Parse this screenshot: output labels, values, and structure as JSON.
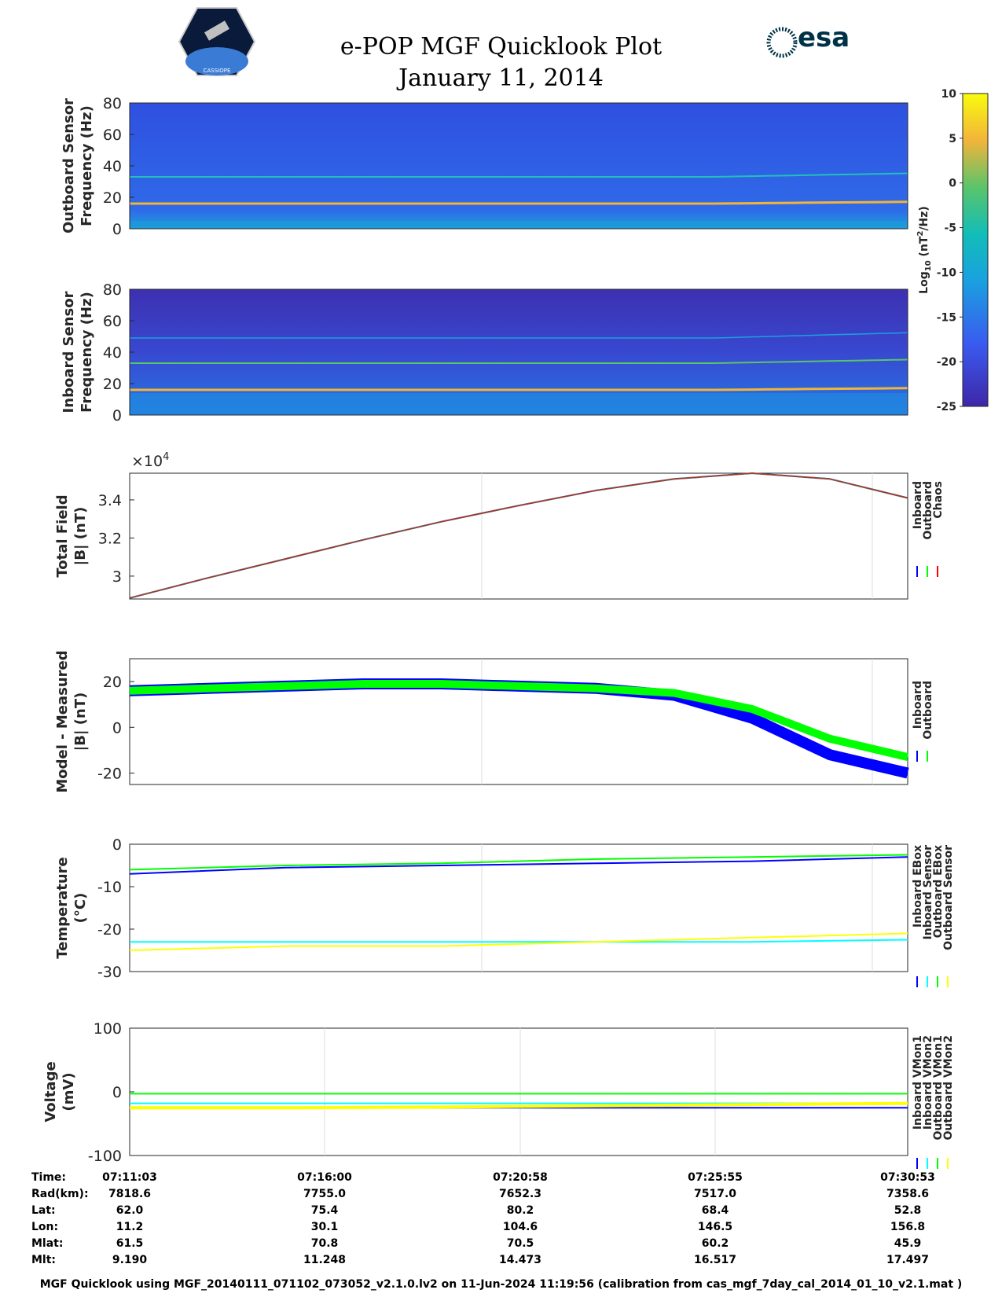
{
  "header": {
    "title": "e-POP MGF Quicklook Plot",
    "date": "January 11, 2014",
    "logo_left": "CASSIOPE",
    "logo_right": "esa"
  },
  "colors": {
    "inboard": "#0000ff",
    "outboard": "#00ff00",
    "chaos": "#ff0000",
    "cyan": "#00ffff",
    "yellow": "#ffff00",
    "spectro_bg": "#3048d8"
  },
  "colorbar": {
    "label": "Log10 (nT2/Hz)",
    "ticks": [
      "10",
      "5",
      "0",
      "-5",
      "-10",
      "-15",
      "-20",
      "-25"
    ],
    "range": [
      -25,
      10
    ]
  },
  "panels": {
    "outboard_spec": {
      "ylabel1": "Outboard Sensor",
      "ylabel2": "Frequency (Hz)",
      "yticks": [
        "80",
        "60",
        "40",
        "20",
        "0"
      ]
    },
    "inboard_spec": {
      "ylabel1": "Inboard Sensor",
      "ylabel2": "Frequency (Hz)",
      "yticks": [
        "80",
        "60",
        "40",
        "20",
        "0"
      ]
    },
    "total_field": {
      "ylabel1": "Total Field",
      "ylabel2": "|B| (nT)",
      "exponent": "×10",
      "exponent_power": "4",
      "yticks": [
        "3.4",
        "3.2",
        "3"
      ],
      "legend": [
        "Inboard",
        "Outboard",
        "Chaos"
      ]
    },
    "model_measured": {
      "ylabel1": "Model - Measured",
      "ylabel2": "|B| (nT)",
      "yticks": [
        "20",
        "0",
        "-20"
      ],
      "legend": [
        "Inboard",
        "Outboard"
      ]
    },
    "temperature": {
      "ylabel1": "Temperature",
      "ylabel2": "(°C)",
      "yticks": [
        "0",
        "-10",
        "-20",
        "-30"
      ],
      "legend": [
        "Inboard EBox",
        "Inboard Sensor",
        "Outboard EBox",
        "Outboard Sensor"
      ]
    },
    "voltage": {
      "ylabel1": "Voltage",
      "ylabel2": "(mV)",
      "yticks": [
        "100",
        "0",
        "-100"
      ],
      "legend": [
        "Inboard VMon1",
        "Inboard VMon2",
        "Outboard VMon1",
        "Outboard VMon2"
      ]
    }
  },
  "chart_data": [
    {
      "type": "heatmap",
      "title": "Outboard Sensor",
      "ylabel": "Frequency (Hz)",
      "ylim": [
        0,
        80
      ],
      "lines_hz": [
        16,
        33
      ],
      "zlabel": "Log10 (nT2/Hz)",
      "zlim": [
        -25,
        10
      ]
    },
    {
      "type": "heatmap",
      "title": "Inboard Sensor",
      "ylabel": "Frequency (Hz)",
      "ylim": [
        0,
        80
      ],
      "lines_hz": [
        16,
        33,
        49
      ],
      "zlabel": "Log10 (nT2/Hz)",
      "zlim": [
        -25,
        10
      ]
    },
    {
      "type": "line",
      "ylabel": "Total Field |B| (nT)",
      "ylim": [
        28800,
        35400
      ],
      "x_frac": [
        0,
        0.1,
        0.2,
        0.3,
        0.4,
        0.5,
        0.6,
        0.7,
        0.8,
        0.9,
        1.0
      ],
      "series": [
        {
          "name": "Inboard",
          "values": [
            28850,
            29900,
            30900,
            31900,
            32850,
            33700,
            34500,
            35100,
            35400,
            35100,
            34100
          ]
        },
        {
          "name": "Outboard",
          "values": [
            28850,
            29900,
            30900,
            31900,
            32850,
            33700,
            34500,
            35100,
            35400,
            35100,
            34100
          ]
        },
        {
          "name": "Chaos",
          "values": [
            28850,
            29900,
            30900,
            31900,
            32850,
            33700,
            34500,
            35100,
            35400,
            35100,
            34100
          ]
        }
      ]
    },
    {
      "type": "line",
      "ylabel": "Model - Measured |B| (nT)",
      "ylim": [
        -25,
        30
      ],
      "x_frac": [
        0,
        0.1,
        0.2,
        0.3,
        0.4,
        0.5,
        0.6,
        0.7,
        0.8,
        0.9,
        1.0
      ],
      "series": [
        {
          "name": "Inboard",
          "values": [
            16,
            17,
            18,
            19,
            19,
            18,
            17,
            14,
            4,
            -12,
            -20
          ]
        },
        {
          "name": "Outboard",
          "values": [
            16,
            17,
            18,
            19,
            19,
            18,
            17,
            15,
            8,
            -5,
            -13
          ]
        }
      ]
    },
    {
      "type": "line",
      "ylabel": "Temperature (°C)",
      "ylim": [
        -30,
        0
      ],
      "x_frac": [
        0,
        0.2,
        0.4,
        0.6,
        0.8,
        1.0
      ],
      "series": [
        {
          "name": "Inboard EBox",
          "values": [
            -7,
            -5.5,
            -5,
            -4.5,
            -4,
            -3
          ]
        },
        {
          "name": "Inboard Sensor",
          "values": [
            -23,
            -23,
            -23,
            -23,
            -23,
            -22.5
          ]
        },
        {
          "name": "Outboard EBox",
          "values": [
            -6,
            -5,
            -4.5,
            -3.5,
            -3,
            -2.5
          ]
        },
        {
          "name": "Outboard Sensor",
          "values": [
            -25,
            -24,
            -24,
            -23,
            -22,
            -21
          ]
        }
      ]
    },
    {
      "type": "line",
      "ylabel": "Voltage (mV)",
      "ylim": [
        -100,
        100
      ],
      "x_frac": [
        0,
        0.2,
        0.4,
        0.6,
        0.8,
        1.0
      ],
      "series": [
        {
          "name": "Inboard VMon1",
          "values": [
            -25,
            -25,
            -25,
            -25,
            -25,
            -25
          ]
        },
        {
          "name": "Inboard VMon2",
          "values": [
            -18,
            -18,
            -18,
            -18,
            -18,
            -18
          ]
        },
        {
          "name": "Outboard VMon1",
          "values": [
            -3,
            -3,
            -3,
            -3,
            -3,
            -3
          ]
        },
        {
          "name": "Outboard VMon2",
          "values": [
            -25,
            -25,
            -24,
            -22,
            -20,
            -18
          ]
        }
      ]
    }
  ],
  "ephemeris": {
    "labels": [
      "Time:",
      "Rad(km):",
      "Lat:",
      "Lon:",
      "Mlat:",
      "Mlt:"
    ],
    "columns": [
      [
        "07:11:03",
        "7818.6",
        "62.0",
        "11.2",
        "61.5",
        "9.190"
      ],
      [
        "07:16:00",
        "7755.0",
        "75.4",
        "30.1",
        "70.8",
        "11.248"
      ],
      [
        "07:20:58",
        "7652.3",
        "80.2",
        "104.6",
        "70.5",
        "14.473"
      ],
      [
        "07:25:55",
        "7517.0",
        "68.4",
        "146.5",
        "60.2",
        "16.517"
      ],
      [
        "07:30:53",
        "7358.6",
        "52.8",
        "156.8",
        "45.9",
        "17.497"
      ]
    ]
  },
  "footer": "MGF Quicklook using MGF_20140111_071102_073052_v2.1.0.lv2 on 11-Jun-2024 11:19:56 (calibration from cas_mgf_7day_cal_2014_01_10_v2.1.mat )"
}
